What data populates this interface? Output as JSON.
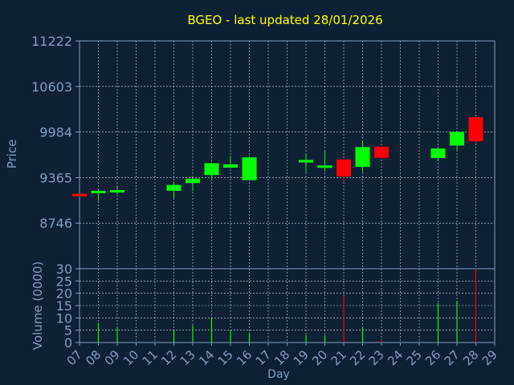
{
  "chart_data": {
    "type": "candlestick",
    "title": "BGEO - last updated 28/01/2026",
    "colors": {
      "background": "#0f2135",
      "axis_text": "#7f9dbd",
      "title": "#ffff00",
      "up": "#00ff00",
      "down": "#ff0000",
      "grid": "#ffffff"
    },
    "price_panel": {
      "ylabel": "Price",
      "ylim": [
        8127,
        11222
      ],
      "yticks": [
        "11222",
        "10603",
        "9984",
        "9365",
        "8746"
      ],
      "ytick_values": [
        11222,
        10603,
        9984,
        9365,
        8746
      ]
    },
    "volume_panel": {
      "ylabel": "Volume (0000)",
      "ylim": [
        0,
        30
      ],
      "yticks": [
        "30",
        "25",
        "20",
        "15",
        "10",
        "5",
        "0"
      ],
      "ytick_values": [
        30,
        25,
        20,
        15,
        10,
        5,
        0
      ]
    },
    "xlabel": "Day",
    "x_ticks": [
      "07",
      "08",
      "09",
      "10",
      "11",
      "12",
      "13",
      "14",
      "15",
      "16",
      "17",
      "18",
      "19",
      "20",
      "21",
      "22",
      "23",
      "24",
      "25",
      "26",
      "27",
      "28",
      "29"
    ],
    "candles": [
      {
        "day": "07",
        "open": 9145,
        "close": 9110,
        "high": 9145,
        "low": 9110,
        "volume": 0
      },
      {
        "day": "08",
        "open": 9160,
        "close": 9185,
        "high": 9200,
        "low": 9050,
        "volume": 8
      },
      {
        "day": "09",
        "open": 9165,
        "close": 9195,
        "high": 9240,
        "low": 9140,
        "volume": 6
      },
      {
        "day": "12",
        "open": 9185,
        "close": 9265,
        "high": 9310,
        "low": 9085,
        "volume": 5
      },
      {
        "day": "13",
        "open": 9290,
        "close": 9350,
        "high": 9380,
        "low": 9180,
        "volume": 7
      },
      {
        "day": "14",
        "open": 9400,
        "close": 9560,
        "high": 9560,
        "low": 9330,
        "volume": 10
      },
      {
        "day": "15",
        "open": 9500,
        "close": 9545,
        "high": 9660,
        "low": 9490,
        "volume": 5
      },
      {
        "day": "16",
        "open": 9330,
        "close": 9640,
        "high": 9655,
        "low": 9330,
        "volume": 4
      },
      {
        "day": "19",
        "open": 9570,
        "close": 9605,
        "high": 9680,
        "low": 9440,
        "volume": 3
      },
      {
        "day": "20",
        "open": 9515,
        "close": 9530,
        "high": 9725,
        "low": 9450,
        "volume": 3
      },
      {
        "day": "21",
        "open": 9610,
        "close": 9380,
        "high": 9610,
        "low": 9300,
        "volume": 19
      },
      {
        "day": "22",
        "open": 9510,
        "close": 9780,
        "high": 9870,
        "low": 9440,
        "volume": 6
      },
      {
        "day": "23",
        "open": 9785,
        "close": 9635,
        "high": 9785,
        "low": 9630,
        "volume": 1
      },
      {
        "day": "26",
        "open": 9630,
        "close": 9760,
        "high": 9760,
        "low": 9590,
        "volume": 16
      },
      {
        "day": "27",
        "open": 9800,
        "close": 9985,
        "high": 10000,
        "low": 9730,
        "volume": 17
      },
      {
        "day": "28",
        "open": 10185,
        "close": 9860,
        "high": 10185,
        "low": 9820,
        "volume": 30
      }
    ]
  }
}
